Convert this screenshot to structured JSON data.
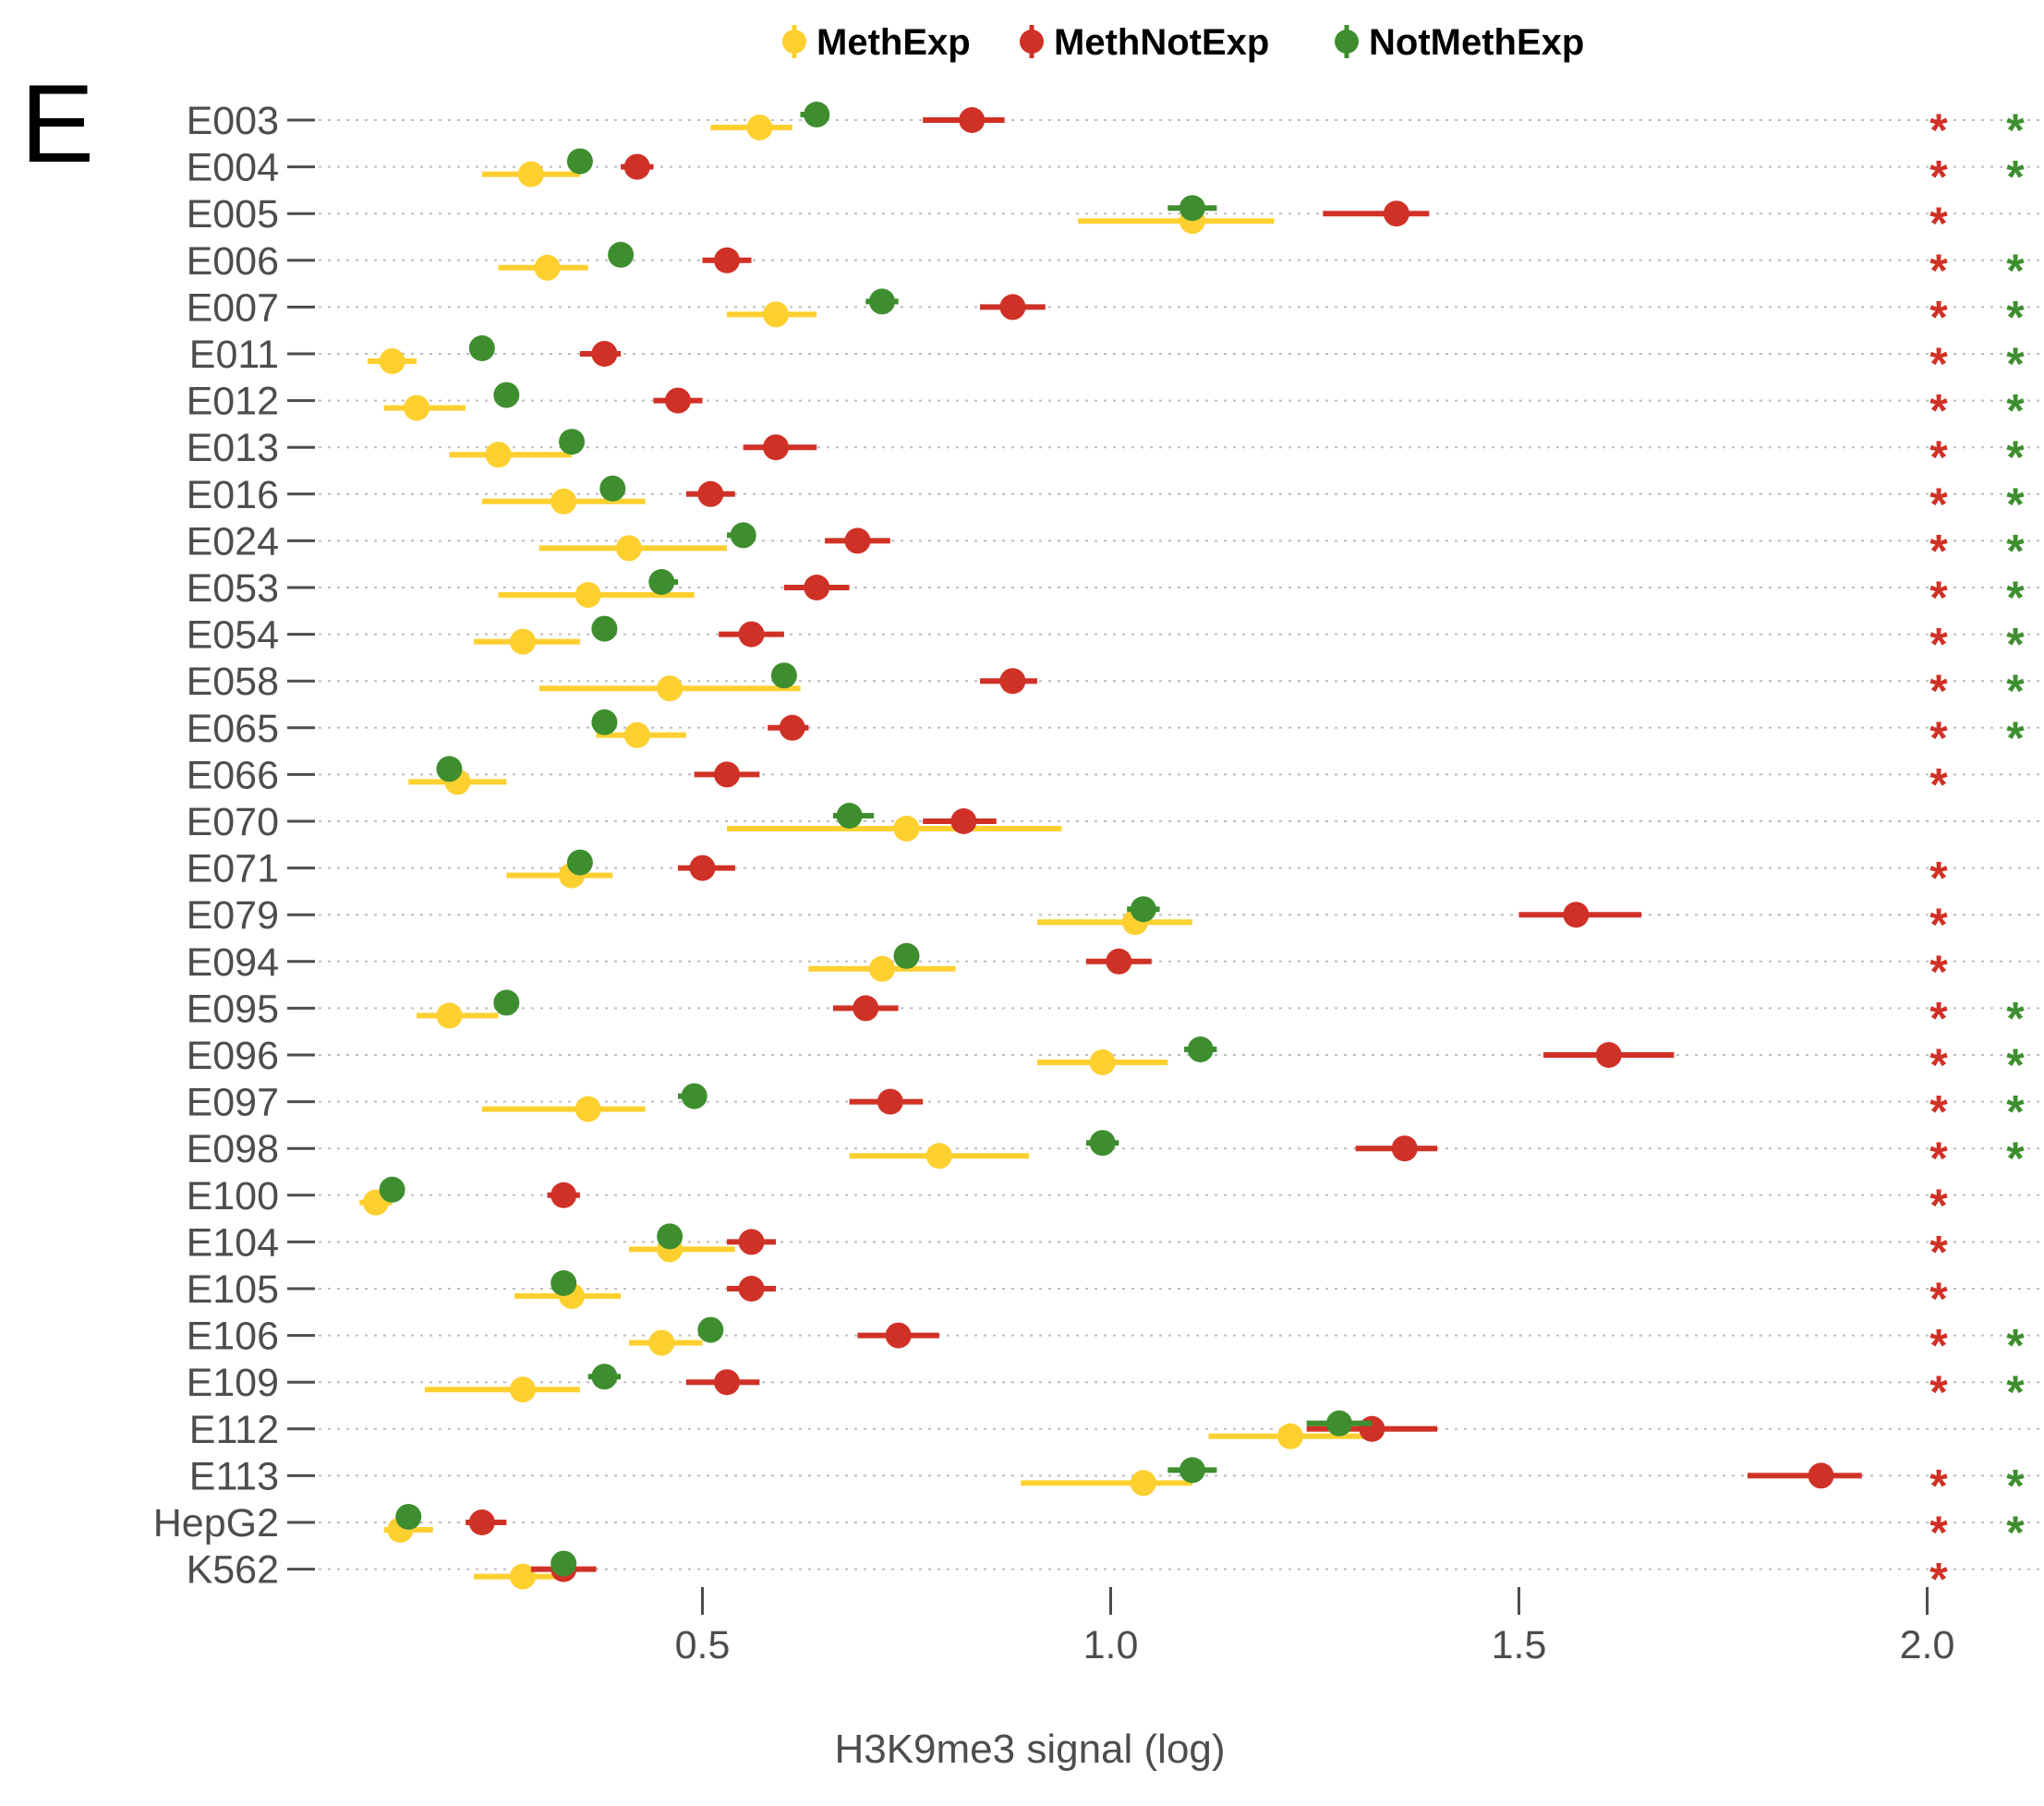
{
  "panel_label": "E",
  "chart_data": {
    "type": "scatter",
    "subtype": "dot-and-whisker",
    "xlabel": "H3K9me3 signal (log)",
    "ylabel": "",
    "xlim": [
      0.0,
      2.1
    ],
    "xticks": [
      0.5,
      1.0,
      1.5,
      2.0
    ],
    "xtick_labels": [
      "0.5",
      "1.0",
      "1.5",
      "2.0"
    ],
    "grid": "horizontal dotted",
    "legend_position": "top",
    "categories": [
      "E003",
      "E004",
      "E005",
      "E006",
      "E007",
      "E011",
      "E012",
      "E013",
      "E016",
      "E024",
      "E053",
      "E054",
      "E058",
      "E065",
      "E066",
      "E070",
      "E071",
      "E079",
      "E094",
      "E095",
      "E096",
      "E097",
      "E098",
      "E100",
      "E104",
      "E105",
      "E106",
      "E109",
      "E112",
      "E113",
      "HepG2",
      "K562"
    ],
    "series": [
      {
        "name": "MethExp",
        "color": "#FDD030",
        "values": [
          0.57,
          0.29,
          1.1,
          0.31,
          0.59,
          0.12,
          0.15,
          0.25,
          0.33,
          0.41,
          0.36,
          0.28,
          0.46,
          0.42,
          0.2,
          0.75,
          0.34,
          1.03,
          0.72,
          0.19,
          0.99,
          0.36,
          0.79,
          0.1,
          0.46,
          0.34,
          0.45,
          0.28,
          1.22,
          1.04,
          0.13,
          0.28
        ],
        "low": [
          0.51,
          0.23,
          0.96,
          0.25,
          0.53,
          0.09,
          0.11,
          0.19,
          0.23,
          0.3,
          0.25,
          0.22,
          0.3,
          0.37,
          0.14,
          0.53,
          0.26,
          0.91,
          0.63,
          0.15,
          0.91,
          0.23,
          0.68,
          0.08,
          0.41,
          0.27,
          0.41,
          0.16,
          1.12,
          0.89,
          0.11,
          0.22
        ],
        "high": [
          0.61,
          0.35,
          1.2,
          0.36,
          0.64,
          0.15,
          0.21,
          0.34,
          0.43,
          0.53,
          0.49,
          0.35,
          0.62,
          0.48,
          0.26,
          0.94,
          0.39,
          1.1,
          0.81,
          0.25,
          1.07,
          0.43,
          0.9,
          0.12,
          0.54,
          0.4,
          0.5,
          0.35,
          1.33,
          1.1,
          0.17,
          0.34
        ]
      },
      {
        "name": "MethNotExp",
        "color": "#D03126",
        "values": [
          0.83,
          0.42,
          1.35,
          0.53,
          0.88,
          0.38,
          0.47,
          0.59,
          0.51,
          0.69,
          0.64,
          0.56,
          0.88,
          0.61,
          0.53,
          0.82,
          0.5,
          1.57,
          1.01,
          0.7,
          1.61,
          0.73,
          1.36,
          0.33,
          0.56,
          0.56,
          0.74,
          0.53,
          1.32,
          1.87,
          0.23,
          0.33
        ],
        "low": [
          0.77,
          0.4,
          1.26,
          0.5,
          0.84,
          0.35,
          0.44,
          0.55,
          0.48,
          0.65,
          0.6,
          0.52,
          0.84,
          0.58,
          0.49,
          0.77,
          0.47,
          1.5,
          0.97,
          0.66,
          1.53,
          0.68,
          1.3,
          0.31,
          0.53,
          0.53,
          0.69,
          0.48,
          1.24,
          1.78,
          0.21,
          0.29
        ],
        "high": [
          0.87,
          0.44,
          1.39,
          0.56,
          0.92,
          0.4,
          0.5,
          0.64,
          0.54,
          0.73,
          0.68,
          0.6,
          0.91,
          0.63,
          0.57,
          0.86,
          0.54,
          1.65,
          1.05,
          0.74,
          1.69,
          0.77,
          1.4,
          0.35,
          0.59,
          0.59,
          0.79,
          0.57,
          1.4,
          1.92,
          0.26,
          0.37
        ]
      },
      {
        "name": "NotMethExp",
        "color": "#3E8E2F",
        "values": [
          0.64,
          0.35,
          1.1,
          0.4,
          0.72,
          0.23,
          0.26,
          0.34,
          0.39,
          0.55,
          0.45,
          0.38,
          0.6,
          0.38,
          0.19,
          0.68,
          0.35,
          1.04,
          0.75,
          0.26,
          1.11,
          0.49,
          0.99,
          0.12,
          0.46,
          0.33,
          0.51,
          0.38,
          1.28,
          1.1,
          0.14,
          0.33
        ],
        "low": [
          0.62,
          0.34,
          1.07,
          0.39,
          0.7,
          0.22,
          0.25,
          0.33,
          0.38,
          0.53,
          0.44,
          0.37,
          0.59,
          0.37,
          0.18,
          0.66,
          0.34,
          1.02,
          0.74,
          0.25,
          1.09,
          0.47,
          0.97,
          0.11,
          0.45,
          0.32,
          0.5,
          0.36,
          1.24,
          1.07,
          0.13,
          0.32
        ],
        "high": [
          0.65,
          0.36,
          1.13,
          0.41,
          0.74,
          0.24,
          0.27,
          0.35,
          0.4,
          0.56,
          0.47,
          0.39,
          0.61,
          0.39,
          0.2,
          0.71,
          0.36,
          1.06,
          0.76,
          0.27,
          1.13,
          0.5,
          1.01,
          0.13,
          0.47,
          0.34,
          0.52,
          0.4,
          1.32,
          1.13,
          0.15,
          0.34
        ]
      }
    ],
    "significance_markers": {
      "symbol": "*",
      "red_color": "#D03126",
      "green_color": "#3E8E2F",
      "red": [
        true,
        true,
        true,
        true,
        true,
        true,
        true,
        true,
        true,
        true,
        true,
        true,
        true,
        true,
        true,
        false,
        true,
        true,
        true,
        true,
        true,
        true,
        true,
        true,
        true,
        true,
        true,
        true,
        false,
        true,
        true,
        true
      ],
      "green": [
        true,
        true,
        false,
        true,
        true,
        true,
        true,
        true,
        true,
        true,
        true,
        true,
        true,
        true,
        false,
        false,
        false,
        false,
        false,
        true,
        true,
        true,
        true,
        false,
        false,
        false,
        true,
        true,
        false,
        true,
        true,
        false
      ]
    }
  }
}
